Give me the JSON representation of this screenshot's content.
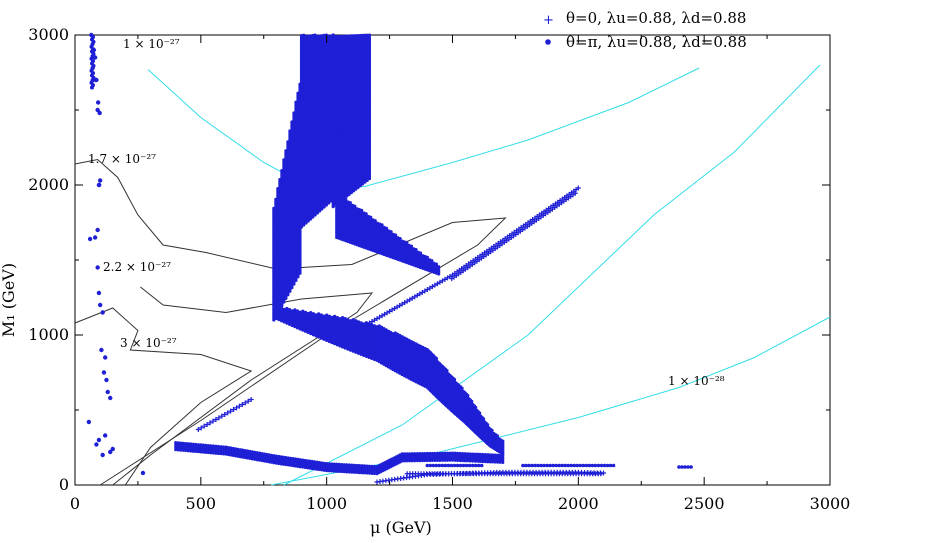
{
  "chart_data": {
    "type": "scatter",
    "xlabel": "μ (GeV)",
    "ylabel": "M₁ (GeV)",
    "xlim": [
      0,
      3000
    ],
    "ylim": [
      0,
      3000
    ],
    "xticks": [
      0,
      500,
      1000,
      1500,
      2000,
      2500,
      3000
    ],
    "yticks": [
      0,
      1000,
      2000,
      3000
    ],
    "grid": false,
    "legend_position": "top-right",
    "colors": {
      "points": "#1f1fd6",
      "contour_black": "#333333",
      "contour_cyan": "#33dde8"
    },
    "series": [
      {
        "name": "θ=0, λu=0.88, λd=0.88",
        "marker": "plus",
        "regions": [
          {
            "kind": "band-line",
            "points": [
              [
                1170,
                1080
              ],
              [
                1500,
                1400
              ],
              [
                2000,
                1980
              ]
            ]
          },
          {
            "kind": "band-line",
            "points": [
              [
                490,
                370
              ],
              [
                700,
                570
              ]
            ]
          },
          {
            "kind": "band-line",
            "points": [
              [
                1200,
                20
              ],
              [
                1400,
                70
              ],
              [
                1700,
                85
              ],
              [
                2000,
                85
              ],
              [
                2100,
                80
              ]
            ]
          }
        ]
      },
      {
        "name": "θ=π, λu=0.88, λd=0.88",
        "marker": "dot",
        "regions": [
          {
            "kind": "upper-vertical-band",
            "x_range": [
              900,
              1170
            ],
            "y_range": [
              1850,
              3000
            ]
          },
          {
            "kind": "curved-band",
            "points": [
              [
                800,
                1150
              ],
              [
                1000,
                1050
              ],
              [
                1200,
                950
              ],
              [
                1400,
                780
              ],
              [
                1550,
                520
              ],
              [
                1650,
                320
              ],
              [
                1700,
                250
              ]
            ]
          },
          {
            "kind": "left-column",
            "points": [
              [
                65,
                3000
              ],
              [
                75,
                2900
              ],
              [
                85,
                2700
              ],
              [
                90,
                2500
              ],
              [
                95,
                2000
              ],
              [
                80,
                1650
              ],
              [
                90,
                1450
              ],
              [
                100,
                1200
              ],
              [
                105,
                900
              ],
              [
                115,
                750
              ],
              [
                140,
                580
              ],
              [
                55,
                420
              ],
              [
                120,
                330
              ],
              [
                85,
                270
              ],
              [
                140,
                220
              ]
            ]
          },
          {
            "kind": "low-band",
            "points": [
              [
                400,
                260
              ],
              [
                600,
                230
              ],
              [
                800,
                170
              ],
              [
                1000,
                120
              ],
              [
                1200,
                100
              ],
              [
                1300,
                185
              ],
              [
                1500,
                190
              ],
              [
                1700,
                175
              ]
            ]
          },
          {
            "kind": "low-row",
            "points": [
              [
                1400,
                130
              ],
              [
                1620,
                130
              ],
              [
                1780,
                130
              ],
              [
                2150,
                120
              ],
              [
                2400,
                120
              ],
              [
                2450,
                100
              ],
              [
                2550,
                100
              ]
            ]
          }
        ]
      }
    ],
    "contours": [
      {
        "label": "1 × 10⁻²⁷",
        "color": "cyan",
        "points": [
          [
            290,
            2770
          ],
          [
            500,
            2450
          ],
          [
            750,
            2150
          ],
          [
            950,
            1970
          ],
          [
            1150,
            1990
          ],
          [
            1500,
            2150
          ],
          [
            1800,
            2300
          ],
          [
            2200,
            2550
          ],
          [
            2480,
            2780
          ]
        ]
      },
      {
        "label": "1 × 10⁻²⁸",
        "color": "cyan",
        "points": [
          [
            780,
            0
          ],
          [
            1400,
            200
          ],
          [
            2000,
            450
          ],
          [
            2400,
            650
          ],
          [
            2700,
            850
          ],
          [
            3000,
            1120
          ]
        ]
      },
      {
        "label": "",
        "color": "cyan",
        "points": [
          [
            830,
            0
          ],
          [
            1300,
            400
          ],
          [
            1800,
            1000
          ],
          [
            2300,
            1800
          ],
          [
            2620,
            2220
          ],
          [
            2960,
            2800
          ]
        ]
      },
      {
        "label": "1.7 × 10⁻²⁷",
        "color": "black",
        "points": [
          [
            0,
            2140
          ],
          [
            90,
            2170
          ],
          [
            170,
            2050
          ],
          [
            250,
            1800
          ],
          [
            350,
            1600
          ],
          [
            520,
            1550
          ],
          [
            800,
            1440
          ],
          [
            1100,
            1470
          ],
          [
            1500,
            1750
          ],
          [
            1710,
            1780
          ],
          [
            1600,
            1600
          ],
          [
            1000,
            1000
          ],
          [
            500,
            430
          ],
          [
            100,
            0
          ]
        ]
      },
      {
        "label": "2.2 × 10⁻²⁷",
        "color": "black",
        "points": [
          [
            260,
            1320
          ],
          [
            350,
            1200
          ],
          [
            600,
            1150
          ],
          [
            900,
            1240
          ],
          [
            1180,
            1280
          ],
          [
            1120,
            1150
          ],
          [
            700,
            700
          ],
          [
            300,
            200
          ],
          [
            150,
            0
          ]
        ]
      },
      {
        "label": "3 × 10⁻²⁷",
        "color": "black",
        "points": [
          [
            0,
            1080
          ],
          [
            150,
            1180
          ],
          [
            250,
            1030
          ],
          [
            220,
            900
          ],
          [
            500,
            870
          ],
          [
            700,
            760
          ],
          [
            500,
            550
          ],
          [
            300,
            250
          ],
          [
            200,
            0
          ]
        ]
      }
    ]
  }
}
